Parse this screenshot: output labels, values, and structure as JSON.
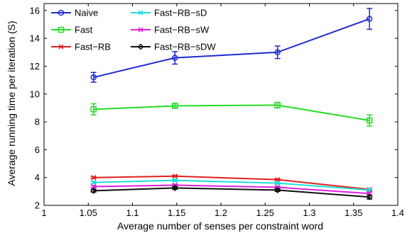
{
  "chart_data": {
    "type": "line",
    "title": "",
    "xlabel": "Average number of senses per constraint word",
    "ylabel": "Average running time per iteration (S)",
    "xlim": [
      1,
      1.4
    ],
    "ylim": [
      2,
      16.5
    ],
    "x_ticks": [
      "1",
      "1.05",
      "1.1",
      "1.15",
      "1.2",
      "1.25",
      "1.3",
      "1.35",
      "1.4"
    ],
    "y_ticks": [
      "2",
      "4",
      "6",
      "8",
      "10",
      "12",
      "14",
      "16"
    ],
    "grid": false,
    "legend_position": "top-left",
    "x": [
      1.056,
      1.148,
      1.264,
      1.368
    ],
    "series": [
      {
        "name": "Naive",
        "color": "#1f2bd1",
        "marker": "circle",
        "values": [
          11.2,
          12.6,
          13.0,
          15.4
        ],
        "err": [
          0.35,
          0.45,
          0.45,
          0.75
        ]
      },
      {
        "name": "Fast",
        "color": "#22dd22",
        "marker": "square",
        "values": [
          8.9,
          9.15,
          9.2,
          8.1
        ],
        "err": [
          0.4,
          0.15,
          0.2,
          0.4
        ]
      },
      {
        "name": "Fast−RB",
        "color": "#e02020",
        "marker": "x",
        "values": [
          4.0,
          4.1,
          3.85,
          3.15
        ],
        "err": [
          0.06,
          0.06,
          0.06,
          0.06
        ]
      },
      {
        "name": "Fast−RB−sD",
        "color": "#22dddd",
        "marker": "x",
        "values": [
          3.65,
          3.8,
          3.6,
          3.1
        ],
        "err": [
          0.08,
          0.08,
          0.08,
          0.12
        ]
      },
      {
        "name": "Fast−RB−sW",
        "color": "#e020e0",
        "marker": "x",
        "values": [
          3.35,
          3.45,
          3.3,
          2.85
        ],
        "err": [
          0.08,
          0.08,
          0.08,
          0.1
        ]
      },
      {
        "name": "Fast−RB−sDW",
        "color": "#111111",
        "marker": "diamond",
        "values": [
          3.05,
          3.25,
          3.1,
          2.6
        ],
        "err": [
          0.1,
          0.1,
          0.1,
          0.15
        ]
      }
    ]
  }
}
